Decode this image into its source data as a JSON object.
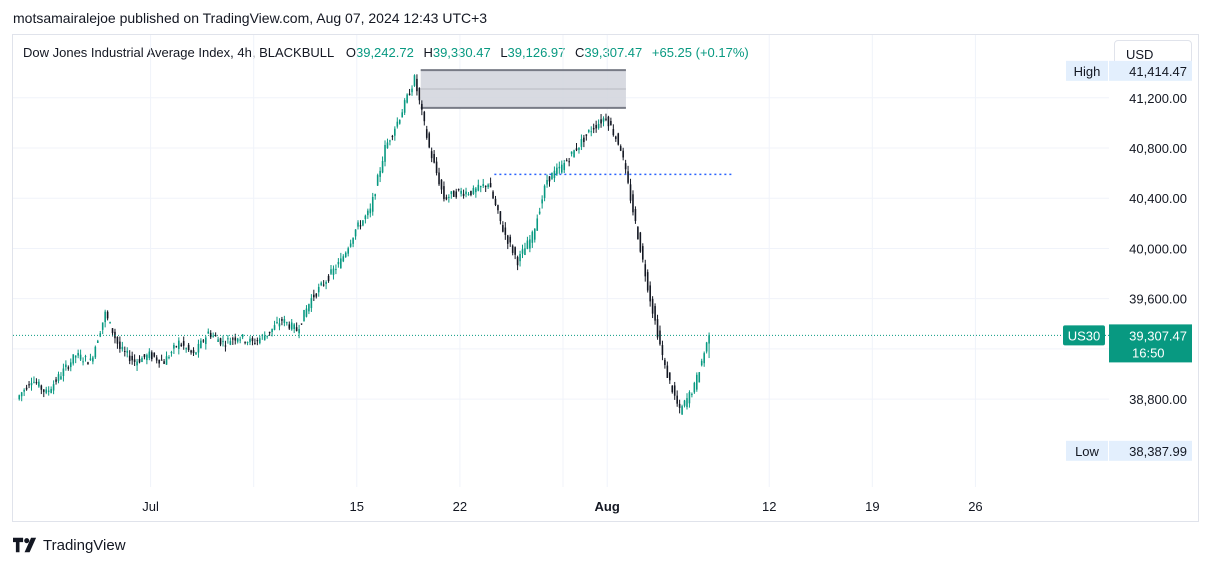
{
  "header": {
    "published_line": "motsamairalejoe published on TradingView.com, Aug 07, 2024 12:43 UTC+3"
  },
  "legend": {
    "symbol": "Dow Jones Industrial Average Index, 4h, BLACKBULL",
    "open_label": "O",
    "open": "39,242.72",
    "high_label": "H",
    "high": "39,330.47",
    "low_label": "L",
    "low": "39,126.97",
    "close_label": "C",
    "close": "39,307.47",
    "change": "+65.25 (+0.17%)"
  },
  "currency_button": "USD",
  "footer": {
    "brand": "TradingView"
  },
  "colors": {
    "up": "#089981",
    "down": "#131722",
    "grid": "#f0f3fa",
    "price_line": "#089981",
    "level_line": "#2962ff",
    "zone_fill": "#d1d4dc",
    "zone_border": "#787b86"
  },
  "chart_data": {
    "type": "candlestick",
    "title": "Dow Jones Industrial Average Index, 4h, BLACKBULL",
    "x_tick_labels": [
      "Jul",
      "15",
      "22",
      "Aug",
      "12",
      "19",
      "26"
    ],
    "y_tick_labels": [
      "41,200.00",
      "40,800.00",
      "40,400.00",
      "40,000.00",
      "39,600.00",
      "38,800.00"
    ],
    "ylim": [
      38100,
      41700
    ],
    "grid": true,
    "markers": {
      "high": {
        "label": "High",
        "value": "41,414.47"
      },
      "low": {
        "label": "Low",
        "value": "38,387.99"
      },
      "last": {
        "symbol": "US30",
        "value": "39,307.47",
        "countdown": "16:50"
      }
    },
    "annotations": {
      "resistance_zone": {
        "from_value": 41120,
        "to_value": 41420,
        "start_date": "2024-07-19",
        "end_date": "2024-08-02"
      },
      "dotted_level": {
        "value": 40590,
        "start_date": "2024-07-24",
        "end_date": "2024-08-09"
      }
    },
    "series_keypoints": [
      [
        "2024-06-22",
        38800
      ],
      [
        "2024-06-23",
        38960
      ],
      [
        "2024-06-24",
        38850
      ],
      [
        "2024-06-25",
        39000
      ],
      [
        "2024-06-26",
        39150
      ],
      [
        "2024-06-27",
        39100
      ],
      [
        "2024-06-28",
        39480
      ],
      [
        "2024-06-29",
        39200
      ],
      [
        "2024-06-30",
        39100
      ],
      [
        "2024-07-01",
        39150
      ],
      [
        "2024-07-02",
        39100
      ],
      [
        "2024-07-03",
        39250
      ],
      [
        "2024-07-04",
        39150
      ],
      [
        "2024-07-05",
        39330
      ],
      [
        "2024-07-06",
        39250
      ],
      [
        "2024-07-07",
        39300
      ],
      [
        "2024-07-08",
        39250
      ],
      [
        "2024-07-09",
        39320
      ],
      [
        "2024-07-10",
        39430
      ],
      [
        "2024-07-11",
        39350
      ],
      [
        "2024-07-12",
        39600
      ],
      [
        "2024-07-13",
        39750
      ],
      [
        "2024-07-14",
        39900
      ],
      [
        "2024-07-15",
        40150
      ],
      [
        "2024-07-16",
        40300
      ],
      [
        "2024-07-17",
        40800
      ],
      [
        "2024-07-18",
        41050
      ],
      [
        "2024-07-19",
        41350
      ],
      [
        "2024-07-20",
        40800
      ],
      [
        "2024-07-21",
        40400
      ],
      [
        "2024-07-22",
        40450
      ],
      [
        "2024-07-23",
        40450
      ],
      [
        "2024-07-24",
        40520
      ],
      [
        "2024-07-25",
        40150
      ],
      [
        "2024-07-26",
        39900
      ],
      [
        "2024-07-27",
        40100
      ],
      [
        "2024-07-28",
        40550
      ],
      [
        "2024-07-29",
        40650
      ],
      [
        "2024-07-30",
        40800
      ],
      [
        "2024-07-31",
        40950
      ],
      [
        "2024-08-01",
        41050
      ],
      [
        "2024-08-02",
        40800
      ],
      [
        "2024-08-03",
        40200
      ],
      [
        "2024-08-04",
        39600
      ],
      [
        "2024-08-05",
        39050
      ],
      [
        "2024-08-06",
        38700
      ],
      [
        "2024-08-07",
        38900
      ],
      [
        "2024-08-08",
        39307.47
      ]
    ]
  }
}
